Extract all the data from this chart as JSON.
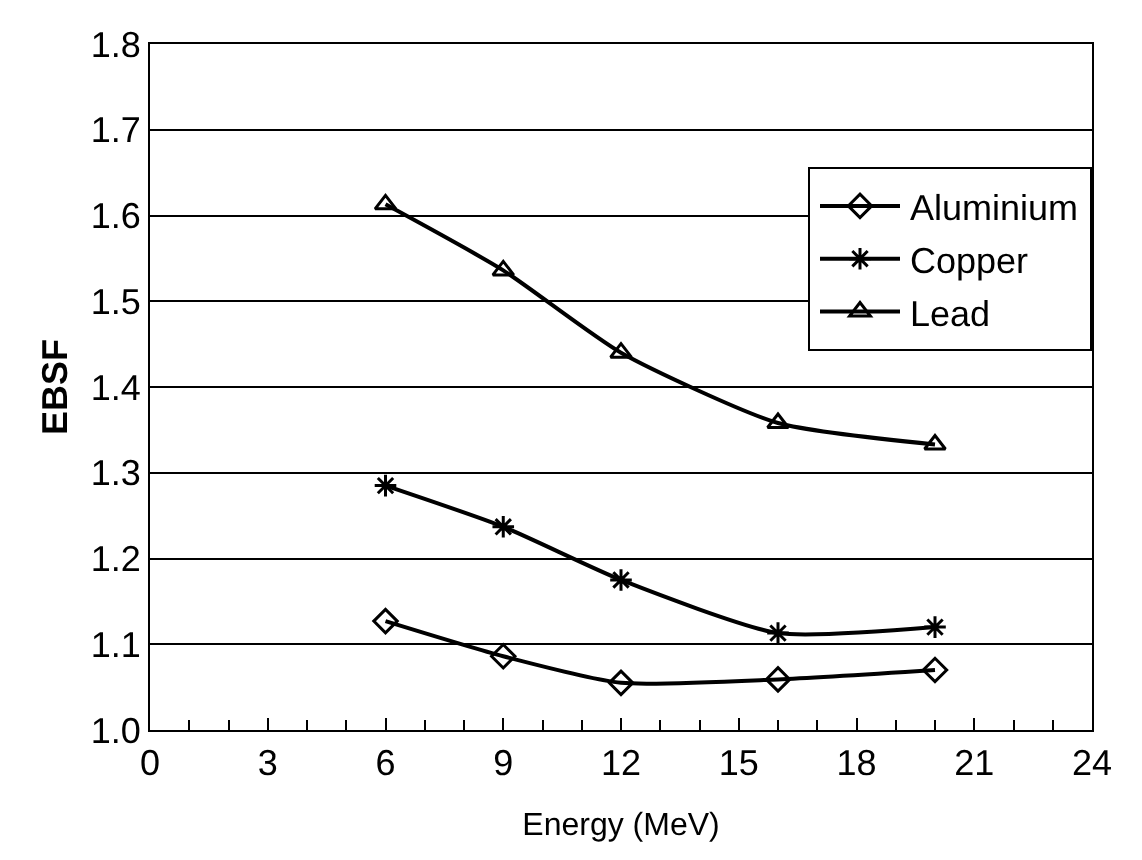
{
  "chart_data": {
    "type": "line",
    "xlabel": "Energy (MeV)",
    "ylabel": "EBSF",
    "x": [
      6,
      9,
      12,
      16,
      20
    ],
    "series": [
      {
        "name": "Aluminium",
        "color": "#000000",
        "marker": "diamond",
        "values": [
          1.127,
          1.086,
          1.055,
          1.059,
          1.07
        ]
      },
      {
        "name": "Copper",
        "color": "#000000",
        "marker": "cross",
        "values": [
          1.285,
          1.237,
          1.175,
          1.113,
          1.12
        ]
      },
      {
        "name": "Lead",
        "color": "#000000",
        "marker": "triangle",
        "values": [
          1.613,
          1.536,
          1.44,
          1.358,
          1.333
        ]
      }
    ],
    "xlim": [
      0,
      24
    ],
    "xticks": [
      0,
      3,
      6,
      9,
      12,
      15,
      18,
      21,
      24
    ],
    "ylim": [
      1.0,
      1.8
    ],
    "yticks": [
      "1.0",
      1.1,
      1.2,
      1.3,
      1.4,
      1.5,
      1.6,
      1.7,
      1.8
    ],
    "grid": "y",
    "legend": "top right",
    "line_style": "solid"
  }
}
